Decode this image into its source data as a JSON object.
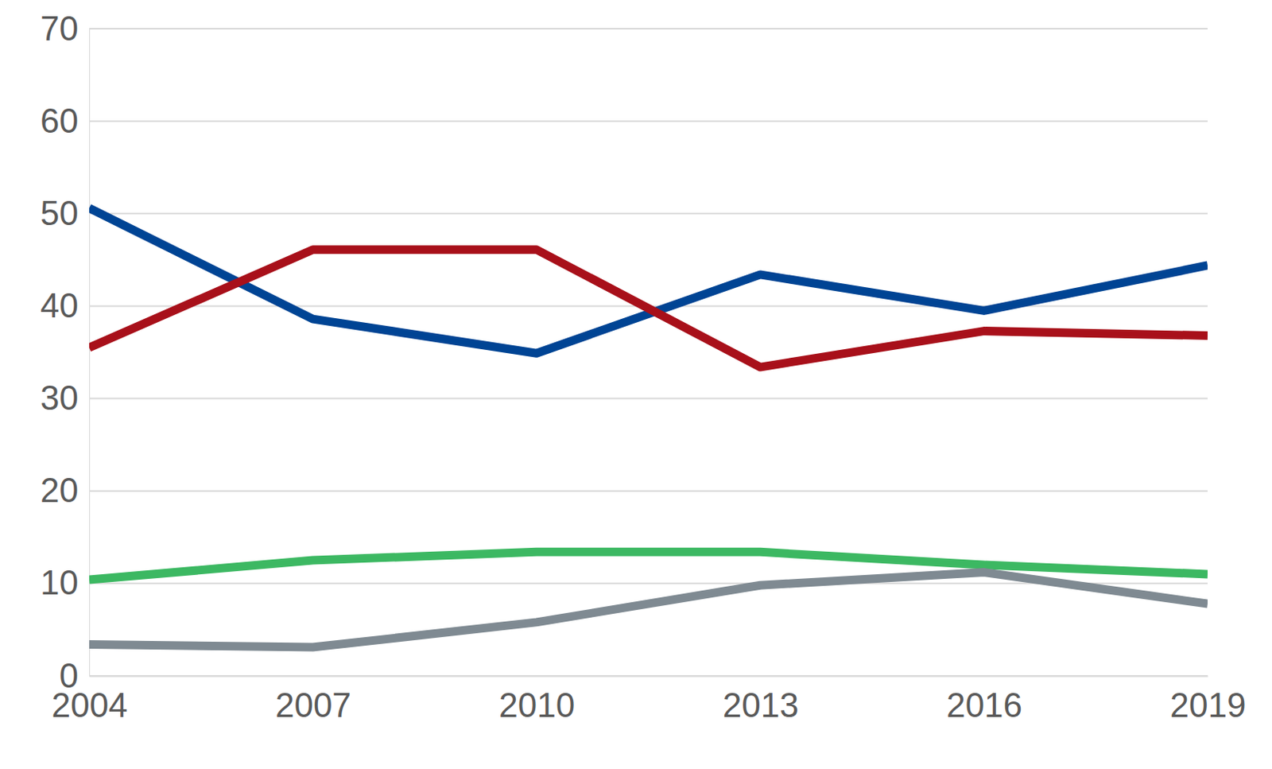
{
  "chart_data": {
    "type": "line",
    "x": [
      2004,
      2007,
      2010,
      2013,
      2016,
      2019
    ],
    "xlim": [
      2004,
      2019
    ],
    "xticks": [
      2004,
      2007,
      2010,
      2013,
      2016,
      2019
    ],
    "ylim": [
      0,
      70
    ],
    "yticks": [
      0,
      10,
      20,
      30,
      40,
      50,
      60,
      70
    ],
    "grid": true,
    "series": [
      {
        "color": "#004494",
        "values": [
          50.6,
          38.6,
          34.9,
          43.4,
          39.5,
          44.4
        ]
      },
      {
        "color": "#a8101a",
        "values": [
          35.5,
          46.1,
          46.1,
          33.4,
          37.3,
          36.8
        ]
      },
      {
        "color": "#3cb862",
        "values": [
          10.4,
          12.5,
          13.4,
          13.4,
          12.0,
          11.0
        ]
      },
      {
        "color": "#7f8a92",
        "values": [
          3.4,
          3.1,
          5.8,
          9.8,
          11.2,
          7.8
        ]
      }
    ]
  }
}
